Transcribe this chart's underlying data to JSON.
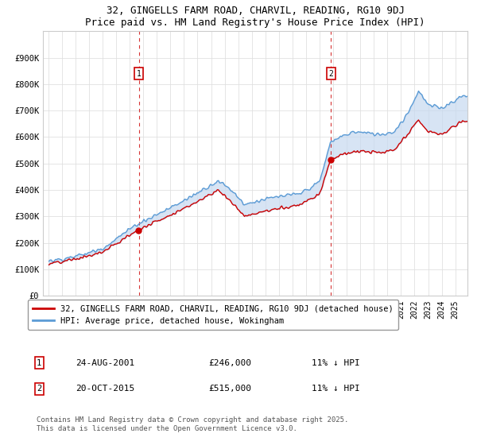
{
  "title_line1": "32, GINGELLS FARM ROAD, CHARVIL, READING, RG10 9DJ",
  "title_line2": "Price paid vs. HM Land Registry's House Price Index (HPI)",
  "bg_color": "#ffffff",
  "fill_color": "#c6d9f0",
  "fill_alpha": 0.6,
  "hpi_color": "#5b9bd5",
  "price_color": "#cc0000",
  "grid_color": "#e0e0e0",
  "sale1_date": "24-AUG-2001",
  "sale1_price": 246000,
  "sale1_label": "11% ↓ HPI",
  "sale2_date": "20-OCT-2015",
  "sale2_price": 515000,
  "sale2_label": "11% ↓ HPI",
  "legend_line1": "32, GINGELLS FARM ROAD, CHARVIL, READING, RG10 9DJ (detached house)",
  "legend_line2": "HPI: Average price, detached house, Wokingham",
  "footnote": "Contains HM Land Registry data © Crown copyright and database right 2025.\nThis data is licensed under the Open Government Licence v3.0.",
  "ylim_max": 1000000,
  "yticks": [
    0,
    100000,
    200000,
    300000,
    400000,
    500000,
    600000,
    700000,
    800000,
    900000
  ],
  "ytick_labels": [
    "£0",
    "£100K",
    "£200K",
    "£300K",
    "£400K",
    "£500K",
    "£600K",
    "£700K",
    "£800K",
    "£900K"
  ]
}
